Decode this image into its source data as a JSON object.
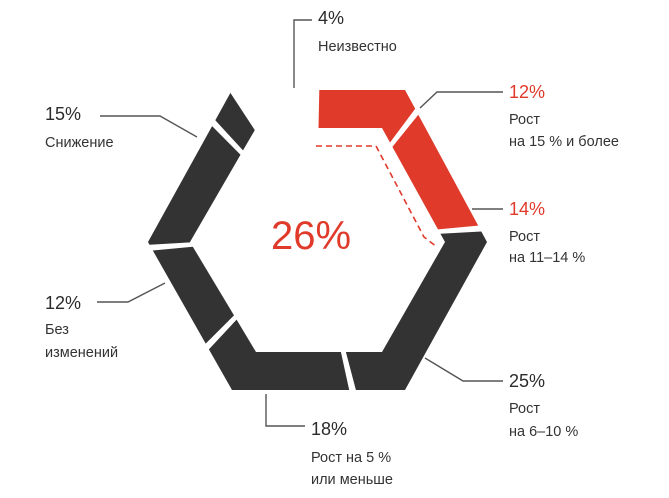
{
  "chart_data": {
    "type": "pie",
    "style": "hexagonal donut",
    "center_value": "26%",
    "highlight_color": "#e03a2b",
    "base_color": "#333333",
    "slices": [
      {
        "value": 4,
        "value_label": "4%",
        "label_lines": [
          "Неизвестно"
        ],
        "color": "#333333"
      },
      {
        "value": 12,
        "value_label": "12%",
        "label_lines": [
          "Рост",
          "на 15 % и более"
        ],
        "color": "#e03a2b"
      },
      {
        "value": 14,
        "value_label": "14%",
        "label_lines": [
          "Рост",
          "на 11–14 %"
        ],
        "color": "#e03a2b"
      },
      {
        "value": 25,
        "value_label": "25%",
        "label_lines": [
          "Рост",
          "на 6–10 %"
        ],
        "color": "#333333"
      },
      {
        "value": 18,
        "value_label": "18%",
        "label_lines": [
          "Рост на 5 %",
          "или меньше"
        ],
        "color": "#333333"
      },
      {
        "value": 12,
        "value_label": "12%",
        "label_lines": [
          "Без",
          "изменений"
        ],
        "color": "#333333"
      },
      {
        "value": 15,
        "value_label": "15%",
        "label_lines": [
          "Снижение"
        ],
        "color": "#333333"
      }
    ]
  }
}
